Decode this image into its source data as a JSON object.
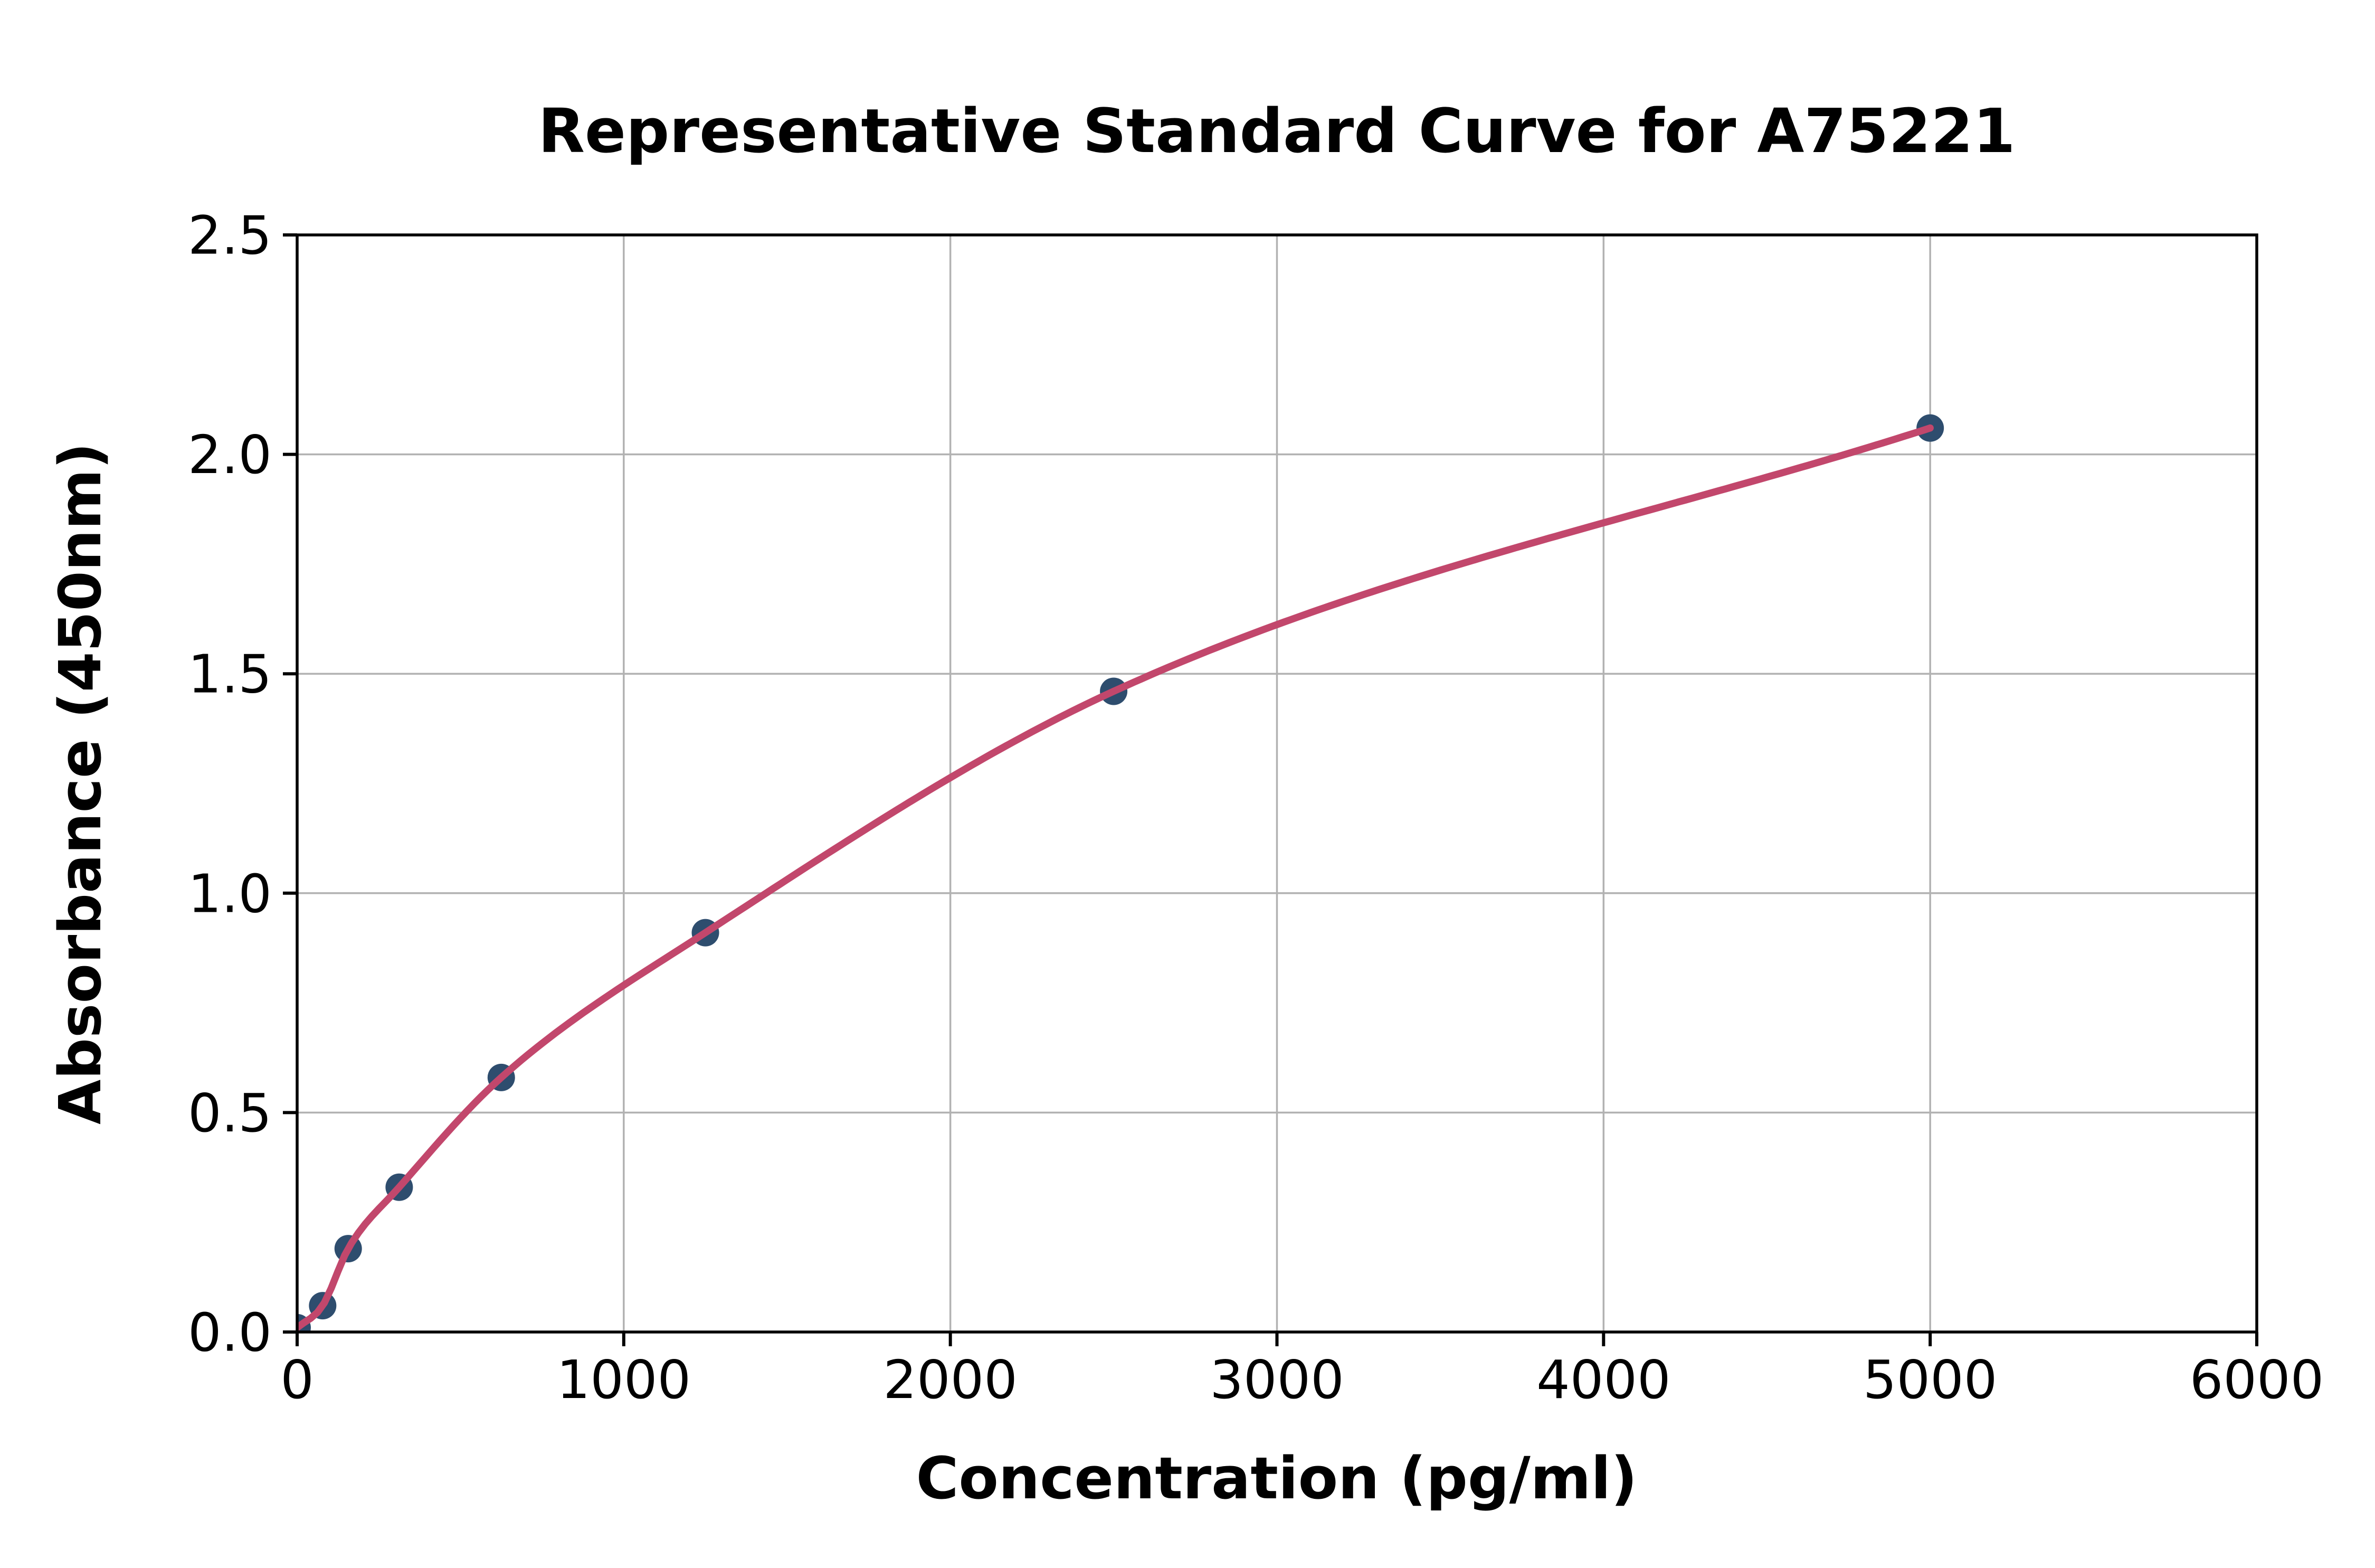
{
  "figure": {
    "background": "#ffffff"
  },
  "chart_data": {
    "type": "scatter",
    "title": "Representative Standard Curve for A75221",
    "xlabel": "Concentration (pg/ml)",
    "ylabel": "Absorbance (450nm)",
    "xlim": [
      0,
      6000
    ],
    "ylim": [
      0,
      2.5
    ],
    "x_ticks": {
      "values": [
        0,
        1000,
        2000,
        3000,
        4000,
        5000,
        6000
      ],
      "labels": [
        "0",
        "1000",
        "2000",
        "3000",
        "4000",
        "5000",
        "6000"
      ]
    },
    "y_ticks": {
      "values": [
        0,
        0.5,
        1.0,
        1.5,
        2.0,
        2.5
      ],
      "labels": [
        "0.0",
        "0.5",
        "1.0",
        "1.5",
        "2.0",
        "2.5"
      ]
    },
    "grid": true,
    "legend": "none",
    "series": [
      {
        "name": "standard-points",
        "type": "scatter",
        "color": "#2e4d6e",
        "x": [
          0,
          78.1,
          156.3,
          312.5,
          625,
          1250,
          2500,
          5000
        ],
        "y": [
          0.01,
          0.06,
          0.19,
          0.33,
          0.58,
          0.91,
          1.46,
          2.06
        ]
      },
      {
        "name": "fitted-curve",
        "type": "line",
        "color": "#c2476c",
        "x": [
          0,
          78.1,
          156.3,
          312.5,
          625,
          1250,
          2500,
          5000
        ],
        "y": [
          0.01,
          0.06,
          0.19,
          0.33,
          0.58,
          0.91,
          1.46,
          2.06
        ]
      }
    ],
    "colors": {
      "background": "#ffffff",
      "grid": "#b2b2b2",
      "axes": "#000000",
      "text": "#000000",
      "marker": "#2e4d6e",
      "curve": "#c2476c"
    }
  }
}
